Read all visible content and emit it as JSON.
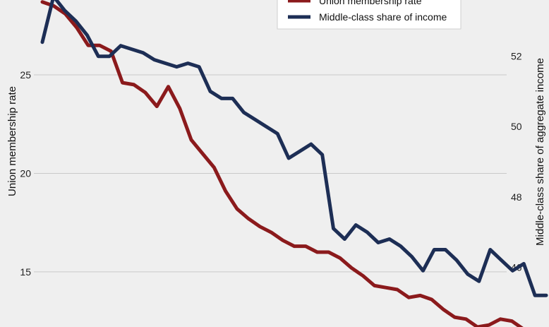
{
  "chart_data": {
    "type": "line",
    "x_index": [
      0,
      1,
      2,
      3,
      4,
      5,
      6,
      7,
      8,
      9,
      10,
      11,
      12,
      13,
      14,
      15,
      16,
      17,
      18,
      19,
      20,
      21,
      22,
      23,
      24,
      25,
      26,
      27,
      28,
      29,
      30,
      31,
      32,
      33,
      34,
      35,
      36,
      37,
      38,
      39,
      40,
      41,
      42,
      43,
      44,
      45,
      46,
      47,
      48,
      49,
      50,
      51,
      52,
      53,
      54,
      55,
      56,
      57,
      58,
      59,
      60,
      61,
      62,
      63,
      64,
      65,
      66,
      67,
      68,
      69,
      70,
      71,
      72,
      73,
      74,
      75,
      76,
      77,
      78,
      79,
      80,
      81,
      82,
      83,
      84,
      85,
      86,
      87,
      88,
      89,
      90,
      91,
      92,
      93,
      94,
      95,
      96,
      97,
      98,
      99,
      100,
      101,
      102
    ],
    "left_axis": {
      "label": "Union membership rate",
      "ticks": [
        15,
        20,
        25
      ],
      "min": 12.2,
      "max": 28.8
    },
    "right_axis": {
      "label": "Middle-class share of aggregate income",
      "ticks": [
        46,
        48,
        50,
        52
      ],
      "min": 44.3,
      "max": 53.6
    },
    "gridlines": true,
    "legend": {
      "placement": "top-center"
    },
    "series": [
      {
        "name": "Union membership rate",
        "axis": "left",
        "color": "#8b1a1c",
        "values": [
          28.7,
          28.5,
          28.1,
          27.4,
          26.5,
          26.5,
          26.2,
          24.6,
          24.5,
          24.1,
          23.4,
          24.4,
          23.3,
          21.7,
          21.0,
          20.3,
          19.1,
          18.2,
          17.7,
          17.3,
          17.0,
          16.6,
          16.3,
          16.3,
          16.0,
          16.0,
          15.7,
          15.2,
          14.8,
          14.3,
          14.2,
          14.1,
          13.7,
          13.8,
          13.6,
          13.1,
          12.7,
          12.6,
          12.2,
          12.3,
          12.6,
          12.5,
          12.1,
          12.0,
          11.4
        ]
      },
      {
        "name": "Middle-class share of income",
        "axis": "right",
        "color": "#1d2e55",
        "values": [
          52.4,
          53.7,
          53.3,
          53.0,
          52.6,
          52.0,
          52.0,
          52.3,
          52.2,
          52.1,
          51.9,
          51.8,
          51.7,
          51.8,
          51.7,
          51.0,
          50.8,
          50.8,
          50.4,
          50.2,
          50.0,
          49.8,
          49.1,
          49.3,
          49.5,
          49.2,
          47.1,
          46.8,
          47.2,
          47.0,
          46.7,
          46.8,
          46.6,
          46.3,
          45.9,
          46.5,
          46.5,
          46.2,
          45.8,
          45.6,
          46.5,
          46.2,
          45.9,
          46.1,
          45.2,
          45.2
        ]
      }
    ]
  }
}
